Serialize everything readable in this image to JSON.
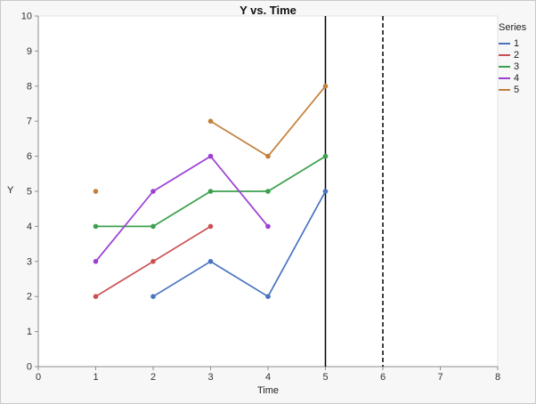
{
  "chart_data": {
    "type": "line",
    "title": "Y vs. Time",
    "xlabel": "Time",
    "ylabel": "Y",
    "xlim": [
      0,
      8
    ],
    "ylim": [
      0,
      10
    ],
    "x_ticks": [
      0,
      1,
      2,
      3,
      4,
      5,
      6,
      7,
      8
    ],
    "y_ticks": [
      0,
      1,
      2,
      3,
      4,
      5,
      6,
      7,
      8,
      9,
      10
    ],
    "grid": false,
    "legend_title": "Series",
    "legend_position": "right",
    "series": [
      {
        "name": "1",
        "color": "#4a73c1",
        "points": [
          [
            2,
            2
          ],
          [
            3,
            3
          ],
          [
            4,
            2
          ],
          [
            5,
            5
          ]
        ]
      },
      {
        "name": "2",
        "color": "#cb4f51",
        "points": [
          [
            1,
            2
          ],
          [
            2,
            3
          ],
          [
            3,
            4
          ]
        ]
      },
      {
        "name": "3",
        "color": "#3ba04e",
        "points": [
          [
            1,
            4
          ],
          [
            2,
            4
          ],
          [
            3,
            5
          ],
          [
            4,
            5
          ],
          [
            5,
            6
          ]
        ]
      },
      {
        "name": "4",
        "color": "#9c3fd4",
        "points": [
          [
            1,
            3
          ],
          [
            2,
            5
          ],
          [
            3,
            6
          ],
          [
            4,
            4
          ]
        ]
      },
      {
        "name": "5",
        "color": "#c3803a",
        "points": [
          [
            1,
            5
          ],
          [
            3,
            7
          ],
          [
            4,
            6
          ],
          [
            5,
            8
          ]
        ],
        "line_breaks_after": [
          0
        ]
      }
    ],
    "reference_lines": [
      {
        "x": 5,
        "style": "solid",
        "color": "#000000"
      },
      {
        "x": 6,
        "style": "dashed",
        "color": "#000000"
      }
    ]
  }
}
